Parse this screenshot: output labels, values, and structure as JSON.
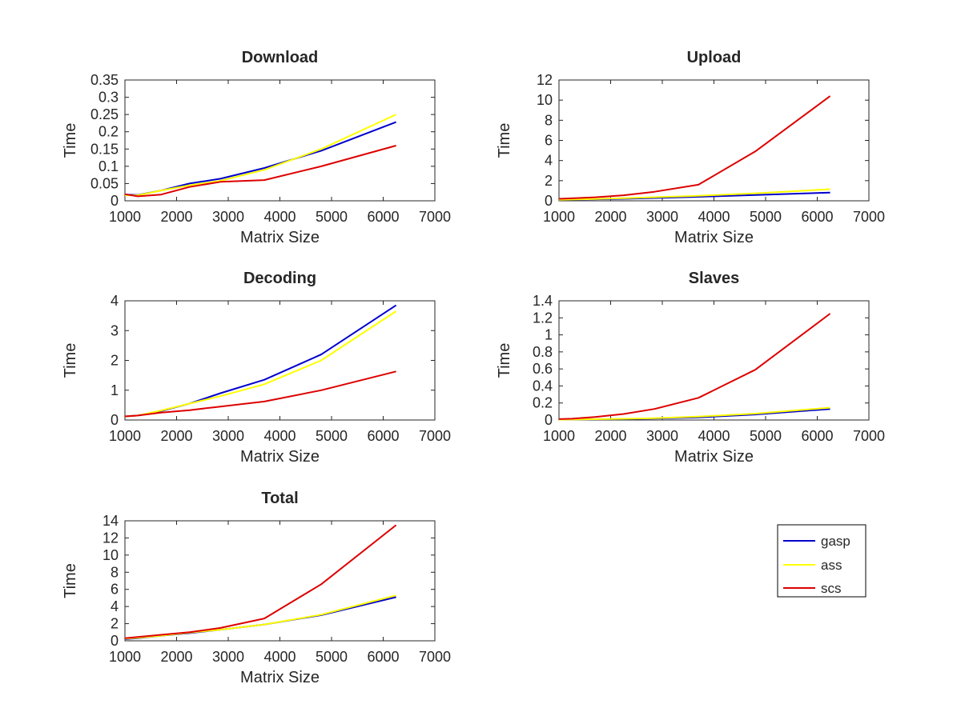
{
  "figure": {
    "legend": {
      "placement": "lower-right",
      "entries": [
        {
          "name": "gasp",
          "color": "#0000cc"
        },
        {
          "name": "ass",
          "color": "#ffff00"
        },
        {
          "name": "scs",
          "color": "#dd0000"
        }
      ]
    }
  },
  "chart_data": [
    {
      "type": "line",
      "title": "Download",
      "xlabel": "Matrix Size",
      "ylabel": "Time",
      "xlim": [
        1000,
        7000
      ],
      "ylim": [
        0,
        0.35
      ],
      "xticks": [
        1000,
        2000,
        3000,
        4000,
        5000,
        6000,
        7000
      ],
      "yticks": [
        0,
        0.05,
        0.1,
        0.15,
        0.2,
        0.25,
        0.3,
        0.35
      ],
      "ytick_labels": [
        "0",
        "0.05",
        "0.1",
        "0.15",
        "0.2",
        "0.25",
        "0.3",
        "0.35"
      ],
      "x": [
        1000,
        1250,
        1700,
        2250,
        2850,
        3700,
        4800,
        6250
      ],
      "series": [
        {
          "name": "gasp",
          "values": [
            0.018,
            0.017,
            0.03,
            0.05,
            0.064,
            0.095,
            0.145,
            0.228
          ]
        },
        {
          "name": "ass",
          "values": [
            0.016,
            0.016,
            0.03,
            0.045,
            0.058,
            0.09,
            0.15,
            0.25
          ]
        },
        {
          "name": "scs",
          "values": [
            0.019,
            0.013,
            0.018,
            0.04,
            0.055,
            0.06,
            0.1,
            0.16
          ]
        }
      ]
    },
    {
      "type": "line",
      "title": "Upload",
      "xlabel": "Matrix Size",
      "ylabel": "Time",
      "xlim": [
        1000,
        7000
      ],
      "ylim": [
        0,
        12
      ],
      "xticks": [
        1000,
        2000,
        3000,
        4000,
        5000,
        6000,
        7000
      ],
      "yticks": [
        0,
        2,
        4,
        6,
        8,
        10,
        12
      ],
      "ytick_labels": [
        "0",
        "2",
        "4",
        "6",
        "8",
        "10",
        "12"
      ],
      "x": [
        1000,
        1250,
        1700,
        2250,
        2850,
        3700,
        4800,
        6250
      ],
      "series": [
        {
          "name": "gasp",
          "values": [
            0.1,
            0.12,
            0.15,
            0.2,
            0.28,
            0.4,
            0.58,
            0.82
          ]
        },
        {
          "name": "ass",
          "values": [
            0.1,
            0.13,
            0.18,
            0.26,
            0.36,
            0.5,
            0.75,
            1.15
          ]
        },
        {
          "name": "scs",
          "values": [
            0.2,
            0.25,
            0.35,
            0.55,
            0.9,
            1.6,
            4.9,
            10.4
          ]
        }
      ]
    },
    {
      "type": "line",
      "title": "Decoding",
      "xlabel": "Matrix Size",
      "ylabel": "Time",
      "xlim": [
        1000,
        7000
      ],
      "ylim": [
        0,
        4
      ],
      "xticks": [
        1000,
        2000,
        3000,
        4000,
        5000,
        6000,
        7000
      ],
      "yticks": [
        0,
        1,
        2,
        3,
        4
      ],
      "ytick_labels": [
        "0",
        "1",
        "2",
        "3",
        "4"
      ],
      "x": [
        1000,
        1250,
        1700,
        2250,
        2850,
        3700,
        4800,
        6250
      ],
      "series": [
        {
          "name": "gasp",
          "values": [
            0.12,
            0.15,
            0.3,
            0.55,
            0.9,
            1.35,
            2.2,
            3.85
          ]
        },
        {
          "name": "ass",
          "values": [
            0.12,
            0.15,
            0.32,
            0.55,
            0.8,
            1.2,
            2.0,
            3.65
          ]
        },
        {
          "name": "scs",
          "values": [
            0.12,
            0.15,
            0.25,
            0.33,
            0.45,
            0.62,
            1.0,
            1.63
          ]
        }
      ]
    },
    {
      "type": "line",
      "title": "Slaves",
      "xlabel": "Matrix Size",
      "ylabel": "Time",
      "xlim": [
        1000,
        7000
      ],
      "ylim": [
        0,
        1.4
      ],
      "xticks": [
        1000,
        2000,
        3000,
        4000,
        5000,
        6000,
        7000
      ],
      "yticks": [
        0,
        0.2,
        0.4,
        0.6,
        0.8,
        1.0,
        1.2,
        1.4
      ],
      "ytick_labels": [
        "0",
        "0.2",
        "0.4",
        "0.6",
        "0.8",
        "1",
        "1.2",
        "1.4"
      ],
      "x": [
        1000,
        1250,
        1700,
        2250,
        2850,
        3700,
        4800,
        6250
      ],
      "series": [
        {
          "name": "gasp",
          "values": [
            0.005,
            0.006,
            0.008,
            0.012,
            0.018,
            0.03,
            0.065,
            0.13
          ]
        },
        {
          "name": "ass",
          "values": [
            0.005,
            0.006,
            0.009,
            0.014,
            0.022,
            0.04,
            0.075,
            0.145
          ]
        },
        {
          "name": "scs",
          "values": [
            0.01,
            0.015,
            0.035,
            0.07,
            0.13,
            0.26,
            0.59,
            1.25
          ]
        }
      ]
    },
    {
      "type": "line",
      "title": "Total",
      "xlabel": "Matrix Size",
      "ylabel": "Time",
      "xlim": [
        1000,
        7000
      ],
      "ylim": [
        0,
        14
      ],
      "xticks": [
        1000,
        2000,
        3000,
        4000,
        5000,
        6000,
        7000
      ],
      "yticks": [
        0,
        2,
        4,
        6,
        8,
        10,
        12,
        14
      ],
      "ytick_labels": [
        "0",
        "2",
        "4",
        "6",
        "8",
        "10",
        "12",
        "14"
      ],
      "x": [
        1000,
        1250,
        1700,
        2250,
        2850,
        3700,
        4800,
        6250
      ],
      "series": [
        {
          "name": "gasp",
          "values": [
            0.2,
            0.3,
            0.6,
            0.9,
            1.3,
            1.9,
            3.0,
            5.1
          ]
        },
        {
          "name": "ass",
          "values": [
            0.25,
            0.35,
            0.6,
            0.95,
            1.3,
            1.9,
            3.05,
            5.3
          ]
        },
        {
          "name": "scs",
          "values": [
            0.3,
            0.45,
            0.7,
            1.0,
            1.5,
            2.6,
            6.6,
            13.5
          ]
        }
      ]
    }
  ]
}
